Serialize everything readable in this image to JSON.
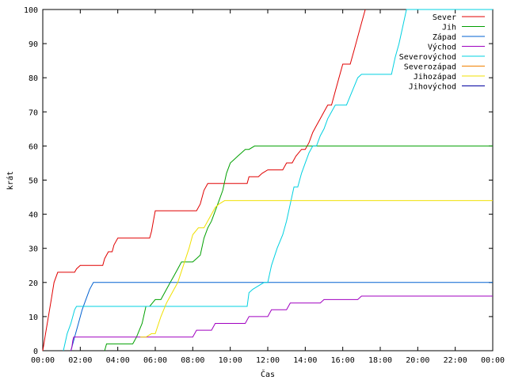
{
  "chart_data": {
    "type": "line",
    "xlabel": "Čas",
    "ylabel": "krát",
    "xlim": [
      0,
      24
    ],
    "ylim": [
      0,
      100
    ],
    "x_ticks": [
      "00:00",
      "02:00",
      "04:00",
      "06:00",
      "08:00",
      "10:00",
      "12:00",
      "14:00",
      "16:00",
      "18:00",
      "20:00",
      "22:00",
      "00:00"
    ],
    "y_ticks": [
      "0",
      "10",
      "20",
      "30",
      "40",
      "50",
      "60",
      "70",
      "80",
      "90",
      "100"
    ],
    "grid": false,
    "legend_position": "top-right",
    "series": [
      {
        "name": "Sever",
        "color": "#e00000",
        "x": [
          0,
          0.15,
          0.3,
          0.45,
          0.6,
          0.8,
          1.0,
          1.7,
          1.8,
          2.0,
          3.2,
          3.3,
          3.5,
          3.7,
          3.8,
          4.0,
          5.7,
          5.8,
          5.9,
          6.0,
          8.2,
          8.4,
          8.6,
          8.8,
          10.9,
          11.0,
          11.5,
          11.7,
          12.0,
          12.8,
          13.0,
          13.3,
          13.5,
          13.8,
          14.0,
          14.2,
          14.4,
          14.6,
          14.8,
          15.0,
          15.2,
          15.4,
          15.6,
          15.8,
          16.0,
          16.4,
          16.6,
          16.8,
          17.0,
          17.2
        ],
        "y": [
          0,
          5,
          10,
          15,
          20,
          23,
          23,
          23,
          24,
          25,
          25,
          27,
          29,
          29,
          31,
          33,
          33,
          35,
          38,
          41,
          41,
          43,
          47,
          49,
          49,
          51,
          51,
          52,
          53,
          53,
          55,
          55,
          57,
          59,
          59,
          61,
          64,
          66,
          68,
          70,
          72,
          72,
          76,
          80,
          84,
          84,
          88,
          92,
          96,
          100
        ]
      },
      {
        "name": "Jih",
        "color": "#00a000",
        "x": [
          3.3,
          3.4,
          4.8,
          5.0,
          5.3,
          5.5,
          5.7,
          6.0,
          6.3,
          6.5,
          6.8,
          7.0,
          7.2,
          7.4,
          8.0,
          8.2,
          8.4,
          8.6,
          8.8,
          9.0,
          9.2,
          9.4,
          9.6,
          9.8,
          10.0,
          10.2,
          10.4,
          10.6,
          10.8,
          11.0,
          11.3,
          11.6,
          11.8,
          12.0,
          24
        ],
        "y": [
          0,
          2,
          2,
          4,
          8,
          13,
          13,
          15,
          15,
          17,
          20,
          22,
          24,
          26,
          26,
          27,
          28,
          33,
          36,
          38,
          41,
          44,
          47,
          52,
          55,
          56,
          57,
          58,
          59,
          59,
          60,
          60,
          60,
          60,
          60
        ]
      },
      {
        "name": "Západ",
        "color": "#0060d0",
        "x": [
          1.5,
          1.7,
          1.9,
          2.1,
          2.3,
          2.5,
          2.7,
          24
        ],
        "y": [
          0,
          4,
          8,
          12,
          15,
          18,
          20,
          20
        ]
      },
      {
        "name": "Východ",
        "color": "#a000c0",
        "x": [
          1.5,
          1.55,
          1.6,
          1.65,
          8.0,
          8.2,
          9.0,
          9.2,
          10.8,
          11.0,
          12.0,
          12.2,
          13.0,
          13.2,
          14.8,
          15.0,
          16.8,
          17.0,
          24
        ],
        "y": [
          0,
          1,
          3,
          4,
          4,
          6,
          6,
          8,
          8,
          10,
          10,
          12,
          12,
          14,
          14,
          15,
          15,
          16,
          16
        ]
      },
      {
        "name": "Severovýchod",
        "color": "#00d0e0",
        "x": [
          1.1,
          1.3,
          1.5,
          1.7,
          1.8,
          10.9,
          11.0,
          11.2,
          11.5,
          11.8,
          12.0,
          12.2,
          12.5,
          12.8,
          13.0,
          13.2,
          13.4,
          13.6,
          13.8,
          14.0,
          14.2,
          14.4,
          14.6,
          14.8,
          15.0,
          15.2,
          15.4,
          15.6,
          16.2,
          16.5,
          16.8,
          17.0,
          17.2,
          18.6,
          18.8,
          19.0,
          19.2,
          19.4,
          24
        ],
        "y": [
          0,
          5,
          8,
          12,
          13,
          13,
          17,
          18,
          19,
          20,
          20,
          25,
          30,
          34,
          38,
          43,
          48,
          48,
          52,
          55,
          58,
          60,
          60,
          63,
          65,
          68,
          70,
          72,
          72,
          76,
          80,
          81,
          81,
          81,
          86,
          90,
          95,
          100,
          100
        ]
      },
      {
        "name": "Severozápad",
        "color": "#f08000",
        "x": [],
        "y": []
      },
      {
        "name": "Jihozápad",
        "color": "#f0e000",
        "x": [
          5.2,
          5.5,
          5.8,
          6.0,
          6.3,
          6.6,
          6.9,
          7.2,
          7.5,
          7.8,
          8.0,
          8.3,
          8.6,
          9.0,
          9.2,
          9.4,
          9.7,
          10.0,
          24
        ],
        "y": [
          4,
          4,
          5,
          5,
          10,
          14,
          17,
          20,
          25,
          30,
          34,
          36,
          36,
          40,
          42,
          43,
          44,
          44,
          44
        ]
      },
      {
        "name": "Jihovýchod",
        "color": "#0000a0",
        "x": [],
        "y": []
      }
    ]
  }
}
